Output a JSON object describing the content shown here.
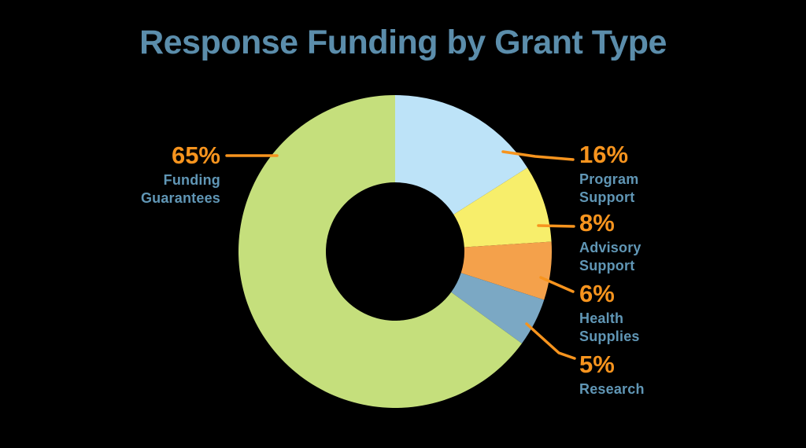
{
  "title": "Response Funding by Grant Type",
  "colors": {
    "background": "#000000",
    "title_text": "#5b8dab",
    "label_text": "#6096b5",
    "accent_orange": "#f7941e"
  },
  "chart_data": {
    "type": "pie",
    "donut": true,
    "title": "Response Funding by Grant Type",
    "categories": [
      "Program Support",
      "Advisory Support",
      "Health Supplies",
      "Research",
      "Funding Guarantees"
    ],
    "values": [
      16,
      8,
      6,
      5,
      65
    ],
    "colors": [
      "#bde3f8",
      "#f7ee6b",
      "#f4a14b",
      "#7ba8c4",
      "#c5df7c"
    ],
    "start_angle_deg": -90,
    "direction": "clockwise",
    "inner_radius_ratio": 0.44,
    "legend_position": "callout-labels",
    "grid": false
  },
  "callouts": [
    {
      "pct": "65%",
      "lines": [
        "Funding",
        "Guarantees"
      ]
    },
    {
      "pct": "16%",
      "lines": [
        "Program",
        "Support"
      ]
    },
    {
      "pct": "8%",
      "lines": [
        "Advisory",
        "Support"
      ]
    },
    {
      "pct": "6%",
      "lines": [
        "Health",
        "Supplies"
      ]
    },
    {
      "pct": "5%",
      "lines": [
        "Research"
      ]
    }
  ]
}
